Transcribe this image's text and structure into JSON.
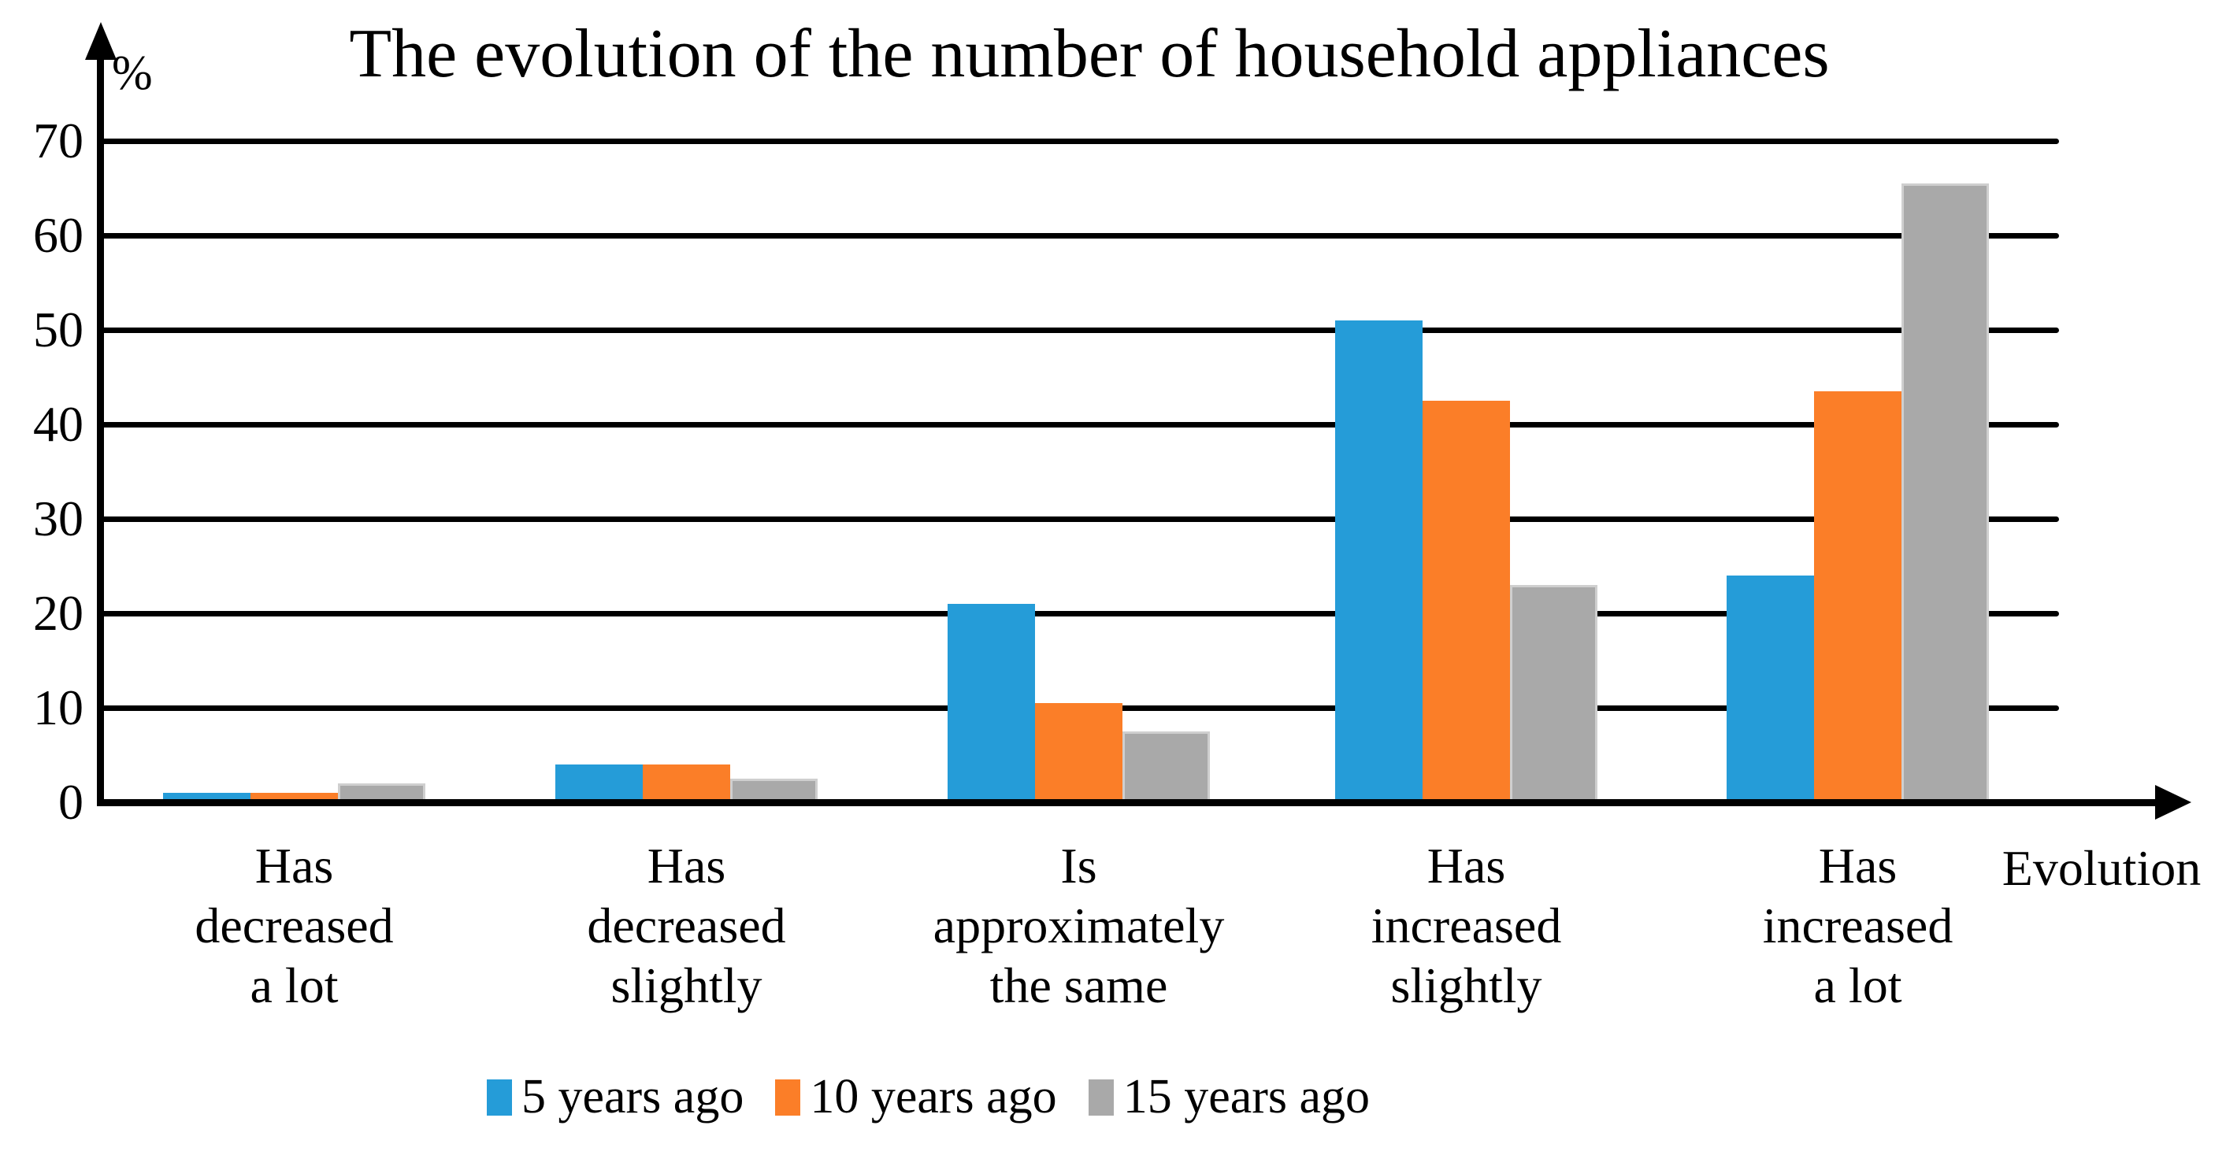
{
  "title": "The evolution of the number of household appliances",
  "y_axis": {
    "unit_label": "%",
    "ticks": [
      0,
      10,
      20,
      30,
      40,
      50,
      60,
      70
    ]
  },
  "x_axis": {
    "title": "Evolution",
    "category_labels": [
      [
        "Has",
        "decreased",
        "a lot"
      ],
      [
        "Has",
        "decreased",
        "slightly"
      ],
      [
        "Is",
        "approximately",
        "the same"
      ],
      [
        "Has",
        "increased",
        "slightly"
      ],
      [
        "Has",
        "increased",
        "a lot"
      ]
    ]
  },
  "legend": {
    "items": [
      {
        "label": "5 years ago",
        "color": "#259cd8"
      },
      {
        "label": "10 years ago",
        "color": "#fb7e28"
      },
      {
        "label": "15 years ago",
        "color": "#a9a9a9"
      }
    ]
  },
  "colors": {
    "axis": "#000000",
    "grid": "#000000",
    "text": "#000000",
    "gray_bar_edge": "#cfcfcf"
  },
  "chart_data": {
    "type": "bar",
    "title": "The evolution of the number of household appliances",
    "categories": [
      "Has decreased a lot",
      "Has decreased slightly",
      "Is approximately the same",
      "Has increased slightly",
      "Has increased a lot"
    ],
    "series": [
      {
        "name": "5 years ago",
        "color": "#259cd8",
        "values": [
          1,
          4,
          21,
          51,
          24
        ]
      },
      {
        "name": "10 years ago",
        "color": "#fb7e28",
        "values": [
          1,
          4,
          10.5,
          42.5,
          43.5
        ]
      },
      {
        "name": "15 years ago",
        "color": "#a9a9a9",
        "edge_color": "#cfcfcf",
        "values": [
          2,
          2.5,
          7.5,
          23,
          65.5
        ]
      }
    ],
    "xlabel": "Evolution",
    "ylabel": "%",
    "ylim": [
      0,
      70
    ],
    "ytick_step": 10,
    "grid": true,
    "legend_position": "bottom"
  }
}
